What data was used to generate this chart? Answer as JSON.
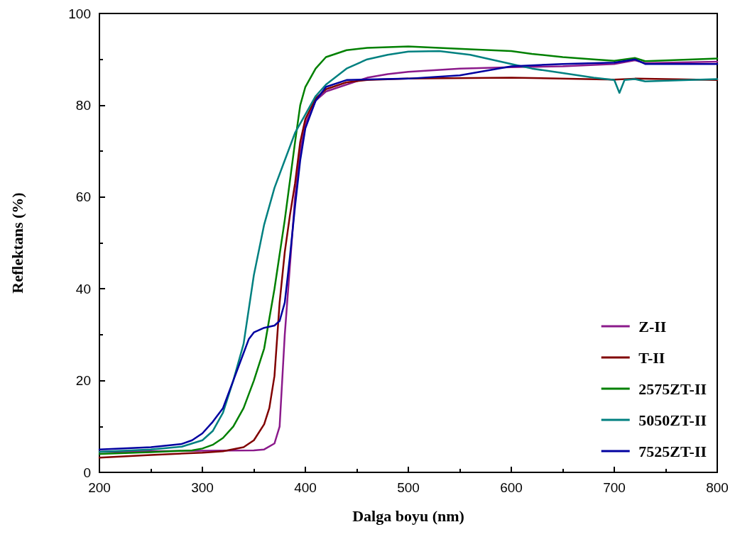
{
  "chart_data": {
    "type": "line",
    "xlabel": "Dalga boyu (nm)",
    "ylabel": "Reflektans (%)",
    "xlim": [
      200,
      800
    ],
    "xticks": [
      200,
      300,
      400,
      500,
      600,
      700,
      800
    ],
    "ylim": [
      0,
      100
    ],
    "yticks": [
      0,
      20,
      40,
      60,
      80,
      100
    ],
    "grid": false,
    "legend": "bottom right",
    "line_style": "solid",
    "marker": "none",
    "series": [
      {
        "name": "Z-II",
        "color": "#8b1a8b",
        "x": [
          200,
          250,
          300,
          350,
          360,
          370,
          375,
          380,
          385,
          390,
          395,
          400,
          410,
          420,
          440,
          460,
          480,
          500,
          550,
          600,
          650,
          700,
          720,
          730,
          800
        ],
        "values": [
          4.5,
          4.6,
          4.7,
          4.8,
          5.0,
          6.3,
          10,
          30,
          45,
          60,
          70,
          76,
          81,
          83,
          84.5,
          86,
          86.8,
          87.3,
          88,
          88.3,
          88.5,
          89,
          89.8,
          89.2,
          89.5
        ]
      },
      {
        "name": "T-II",
        "color": "#800000",
        "x": [
          200,
          250,
          300,
          320,
          340,
          350,
          360,
          365,
          370,
          375,
          380,
          385,
          390,
          395,
          400,
          410,
          420,
          440,
          460,
          500,
          600,
          700,
          720,
          800
        ],
        "values": [
          3.2,
          3.8,
          4.3,
          4.6,
          5.5,
          7,
          10.5,
          14,
          21,
          37,
          48,
          56,
          63,
          72,
          77,
          81.5,
          83.5,
          85,
          85.5,
          85.8,
          86,
          85.6,
          85.8,
          85.5
        ]
      },
      {
        "name": "2575ZT-II",
        "color": "#008000",
        "x": [
          200,
          250,
          290,
          300,
          310,
          320,
          330,
          340,
          350,
          360,
          370,
          380,
          390,
          395,
          400,
          410,
          420,
          440,
          460,
          500,
          530,
          560,
          600,
          620,
          650,
          680,
          700,
          720,
          730,
          800
        ],
        "values": [
          4,
          4.4,
          4.8,
          5.2,
          6,
          7.5,
          10,
          14,
          20,
          27,
          40,
          55,
          72,
          80,
          84,
          88,
          90.5,
          92,
          92.5,
          92.8,
          92.5,
          92.2,
          91.8,
          91.2,
          90.5,
          90,
          89.7,
          90.3,
          89.6,
          90.2
        ]
      },
      {
        "name": "5050ZT-II",
        "color": "#008080",
        "x": [
          200,
          250,
          280,
          300,
          310,
          320,
          330,
          340,
          350,
          360,
          370,
          380,
          390,
          400,
          410,
          420,
          440,
          460,
          480,
          500,
          530,
          560,
          600,
          620,
          650,
          680,
          700,
          705,
          710,
          720,
          730,
          800
        ],
        "values": [
          4.5,
          5,
          5.6,
          7,
          9,
          13,
          20,
          28,
          43,
          54,
          62,
          68,
          74,
          78,
          82,
          84.5,
          88,
          90,
          91,
          91.7,
          91.8,
          91,
          89,
          88,
          87,
          86,
          85.5,
          82.7,
          85.5,
          85.7,
          85.2,
          85.7
        ]
      },
      {
        "name": "7525ZT-II",
        "color": "#0000a0",
        "x": [
          200,
          250,
          280,
          290,
          300,
          310,
          320,
          330,
          340,
          345,
          350,
          360,
          370,
          375,
          380,
          385,
          390,
          395,
          400,
          410,
          420,
          440,
          500,
          550,
          600,
          650,
          700,
          720,
          730,
          800
        ],
        "values": [
          5,
          5.5,
          6.2,
          7,
          8.5,
          11,
          14,
          20,
          26,
          29,
          30.5,
          31.5,
          32,
          33,
          37,
          47,
          58,
          68,
          75,
          81,
          84,
          85.5,
          85.8,
          86.5,
          88.5,
          89,
          89.3,
          90,
          89,
          89
        ]
      }
    ]
  }
}
